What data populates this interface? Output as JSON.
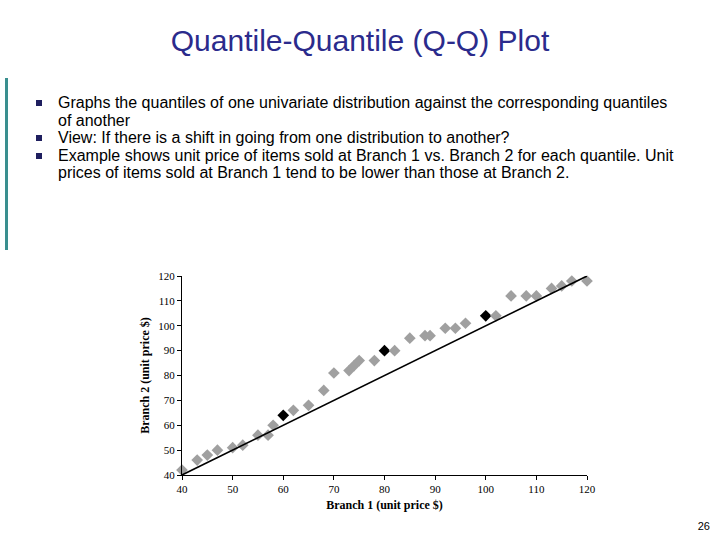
{
  "slide": {
    "title": "Quantile-Quantile (Q-Q) Plot",
    "bullets": [
      "Graphs the quantiles of one univariate distribution against the corresponding quantiles of another",
      "View: If there is a shift in going from one distribution to another?",
      "Example shows unit price of items sold at Branch 1 vs. Branch 2 for each quantile.  Unit prices of items sold at Branch 1 tend to be lower than those at Branch 2."
    ],
    "page_number": "26"
  },
  "chart_data": {
    "type": "scatter",
    "x_label": "Branch 1 (unit price $)",
    "y_label": "Branch 2 (unit price $)",
    "series": [
      {
        "type": "scatter",
        "marker": "diamond",
        "x": [
          40,
          43,
          45,
          47,
          50,
          52,
          55,
          57,
          58,
          60,
          62,
          65,
          68,
          70,
          73,
          74,
          75,
          78,
          80,
          82,
          85,
          88,
          89,
          92,
          94,
          96,
          100,
          102,
          105,
          108,
          110,
          113,
          115,
          117,
          120
        ],
        "values": [
          42,
          46,
          48,
          50,
          51,
          52,
          56,
          56,
          60,
          64,
          66,
          68,
          74,
          81,
          82,
          84,
          86,
          86,
          90,
          90,
          95,
          96,
          96,
          99,
          99,
          101,
          104,
          104,
          112,
          112,
          112,
          115,
          116,
          118,
          118
        ],
        "colors": [
          "#a0a0a0",
          "#a0a0a0",
          "#a0a0a0",
          "#a0a0a0",
          "#a0a0a0",
          "#a0a0a0",
          "#a0a0a0",
          "#a0a0a0",
          "#a0a0a0",
          "#000000",
          "#a0a0a0",
          "#a0a0a0",
          "#a0a0a0",
          "#a0a0a0",
          "#a0a0a0",
          "#a0a0a0",
          "#a0a0a0",
          "#a0a0a0",
          "#000000",
          "#a0a0a0",
          "#a0a0a0",
          "#a0a0a0",
          "#a0a0a0",
          "#a0a0a0",
          "#a0a0a0",
          "#a0a0a0",
          "#000000",
          "#a0a0a0",
          "#a0a0a0",
          "#a0a0a0",
          "#a0a0a0",
          "#a0a0a0",
          "#a0a0a0",
          "#a0a0a0",
          "#a0a0a0"
        ]
      },
      {
        "type": "line",
        "x": [
          40,
          120
        ],
        "values": [
          40,
          120
        ],
        "color": "#000000",
        "line_style": "solid"
      }
    ],
    "xlim": [
      40,
      120
    ],
    "xticks": [
      40,
      50,
      60,
      70,
      80,
      90,
      100,
      110,
      120
    ],
    "ylim": [
      40,
      120
    ],
    "yticks": [
      40,
      50,
      60,
      70,
      80,
      90,
      100,
      110,
      120
    ],
    "grid": false
  }
}
